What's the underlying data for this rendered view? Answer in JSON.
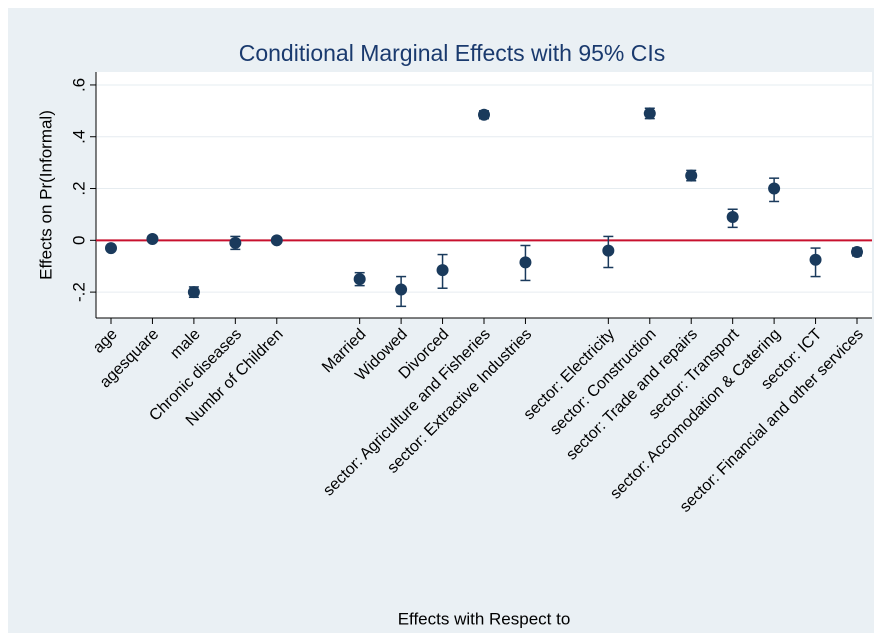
{
  "chart_data": {
    "type": "errorbar-dot",
    "title": "Conditional Marginal Effects with 95% CIs",
    "x_label": "Effects with Respect to",
    "y_label": "Effects on Pr(Informal)",
    "categories": [
      "age",
      "agesquare",
      "male",
      "Chronic diseases",
      "Numbr of Children",
      null,
      "Married",
      "Widowed",
      "Divorced",
      "sector: Agriculture and Fisheries",
      "sector: Extractive Industries",
      null,
      "sector: Electricity",
      "sector: Construction",
      "sector: Trade and repairs",
      "sector: Transport",
      "sector: Accomodation & Catering",
      "sector: ICT",
      "sector: Financial and other services"
    ],
    "series": [
      {
        "color": "#1a3a5c",
        "values": [
          -0.03,
          0.005,
          -0.2,
          -0.01,
          0.0,
          null,
          -0.15,
          -0.19,
          -0.115,
          0.485,
          -0.085,
          null,
          -0.04,
          0.49,
          0.25,
          0.09,
          0.2,
          -0.075,
          -0.045
        ],
        "lower": [
          -0.04,
          -0.002,
          -0.22,
          -0.035,
          -0.005,
          null,
          -0.175,
          -0.255,
          -0.185,
          0.47,
          -0.155,
          null,
          -0.105,
          0.47,
          0.23,
          0.05,
          0.15,
          -0.14,
          -0.06
        ],
        "upper": [
          -0.02,
          0.012,
          -0.18,
          0.015,
          0.005,
          null,
          -0.125,
          -0.14,
          -0.055,
          0.5,
          -0.02,
          null,
          0.015,
          0.51,
          0.27,
          0.12,
          0.24,
          -0.03,
          -0.03
        ]
      }
    ],
    "ylim": [
      -0.3,
      0.65
    ],
    "yticks": [
      {
        "value": -0.2,
        "label": "-.2"
      },
      0,
      {
        "value": 0.2,
        "label": ".2"
      },
      {
        "value": 0.4,
        "label": ".4"
      },
      {
        "value": 0.6,
        "label": ".6"
      }
    ],
    "grid": true,
    "reference_line": {
      "value": 0,
      "color": "#c8102e"
    }
  }
}
